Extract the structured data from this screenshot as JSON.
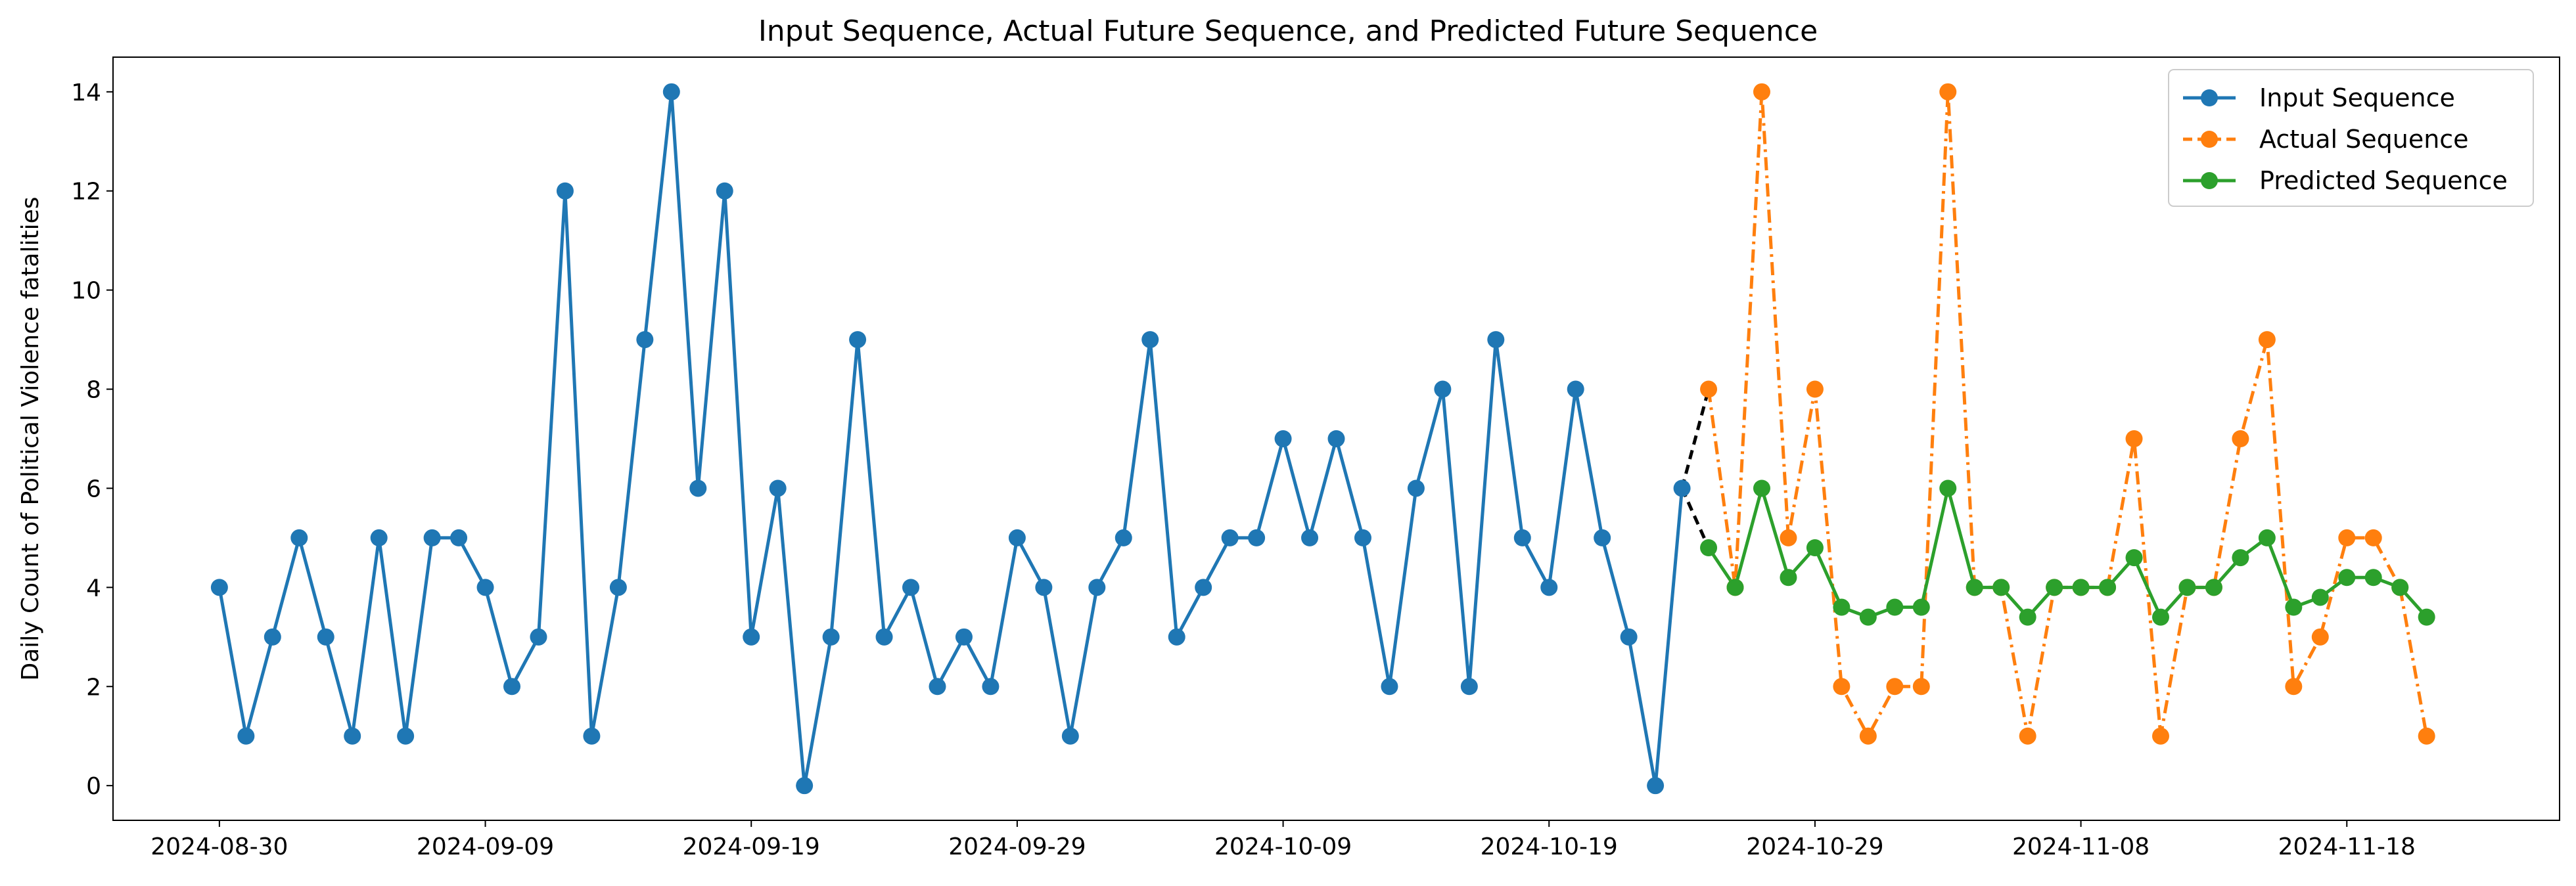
{
  "chart_data": {
    "type": "line",
    "title": "Input Sequence, Actual Future Sequence, and Predicted Future Sequence",
    "xlabel": "",
    "ylabel": "Daily Count of Political Violence fatalities",
    "x_range": [
      "2024-08-26",
      "2024-11-26"
    ],
    "ylim": [
      -0.7,
      14.7
    ],
    "x_ticks": [
      "2024-08-30",
      "2024-09-09",
      "2024-09-19",
      "2024-09-29",
      "2024-10-09",
      "2024-10-19",
      "2024-10-29",
      "2024-11-08",
      "2024-11-18"
    ],
    "y_ticks": [
      0,
      2,
      4,
      6,
      8,
      10,
      12,
      14
    ],
    "grid": false,
    "legend_position": "top-right",
    "series": [
      {
        "name": "Input Sequence",
        "color": "#1f77b4",
        "line_style": "solid",
        "start_date": "2024-08-30",
        "values": [
          4,
          1,
          3,
          5,
          3,
          1,
          5,
          1,
          5,
          5,
          4,
          2,
          3,
          12,
          1,
          4,
          9,
          14,
          6,
          12,
          3,
          6,
          0,
          3,
          9,
          3,
          4,
          2,
          3,
          2,
          5,
          4,
          1,
          4,
          5,
          9,
          3,
          4,
          5,
          5,
          7,
          5,
          7,
          5,
          2,
          6,
          8,
          2,
          9,
          5,
          4,
          8,
          5,
          3,
          0,
          6
        ]
      },
      {
        "name": "Actual Sequence",
        "color": "#ff7f0e",
        "line_style": "dashdot",
        "start_date": "2024-10-25",
        "values": [
          8,
          4,
          14,
          5,
          8,
          2,
          1,
          2,
          2,
          14,
          4,
          4,
          1,
          4,
          4,
          4,
          7,
          1,
          4,
          4,
          7,
          9,
          2,
          3,
          5,
          5,
          4,
          1
        ]
      },
      {
        "name": "Predicted Sequence",
        "color": "#2ca02c",
        "line_style": "solid",
        "start_date": "2024-10-25",
        "values": [
          4.8,
          4,
          6,
          4.2,
          4.8,
          3.6,
          3.4,
          3.6,
          3.6,
          6,
          4,
          4,
          3.4,
          4,
          4,
          4,
          4.6,
          3.4,
          4,
          4,
          4.6,
          5,
          3.6,
          3.8,
          4.2,
          4.2,
          4,
          3.4
        ]
      }
    ],
    "connectors": [
      {
        "color": "#000000",
        "line_style": "dashed",
        "from": [
          "2024-10-24",
          6
        ],
        "to": [
          "2024-10-25",
          8
        ]
      },
      {
        "color": "#000000",
        "line_style": "dashed",
        "from": [
          "2024-10-24",
          6
        ],
        "to": [
          "2024-10-25",
          4.8
        ]
      }
    ]
  }
}
